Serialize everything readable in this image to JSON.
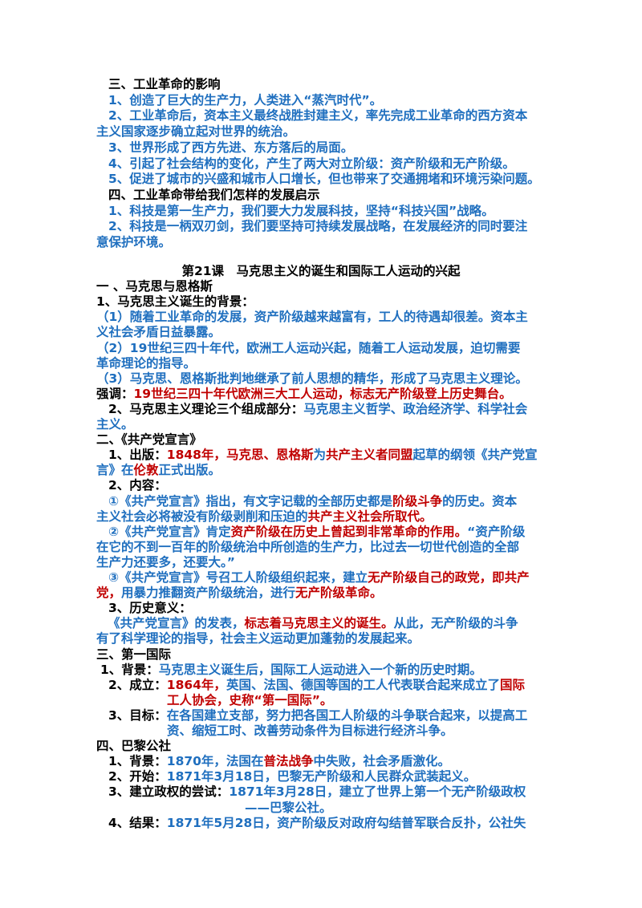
{
  "lines": [
    [
      {
        "text": "三、工业革命的影响",
        "color": "#000000"
      }
    ],
    [
      {
        "text": "1、创造了巨大的生产力，人类进入“蒸汽时代”。",
        "color": "#1f6fbf"
      }
    ],
    [
      {
        "text": "2、工业革命后，资本主义最终战胜封建主义，率先完成工业革命的西方资本",
        "color": "#1f6fbf"
      }
    ],
    [
      {
        "text": "主义国家逐步确立起对世界的统治。",
        "color": "#1f6fbf"
      }
    ],
    [
      {
        "text": "3、世界形成了西方先进、东方落后的局面。",
        "color": "#1f6fbf"
      }
    ],
    [
      {
        "text": "4、引起了社会结构的变化，产生了两大对立阶级：资产阶级和无产阶级。",
        "color": "#1f6fbf"
      }
    ],
    [
      {
        "text": "5、促进了城市的兴盛和城市人口增长，但也带来了交通拥堵和环境污染问题。",
        "color": "#1f6fbf"
      }
    ],
    [
      {
        "text": "四、工业革命带给我们怎样的发展启示",
        "color": "#000000"
      }
    ],
    [
      {
        "text": "1、科技是第一生产力，我们要大力发展科技，坚持“科技兴国”战略。",
        "color": "#1f6fbf"
      }
    ],
    [
      {
        "text": "2、科技是一柄双刃剑，我们要坚持可持续发展战略，在发展经济的同时要注",
        "color": "#1f6fbf"
      }
    ],
    [
      {
        "text": "意保护环境。",
        "color": "#1f6fbf"
      }
    ],
    [
      {
        "text": "第21课　马克思主义的诞生和国际工人运动的兴起",
        "color": "#000000"
      }
    ],
    [
      {
        "text": "一 、马克思与恩格斯",
        "color": "#000000"
      }
    ],
    [
      {
        "text": "1、马克思主义诞生的背景：",
        "color": "#000000"
      }
    ],
    [
      {
        "text": "（1）随着工业革命的发展，资产阶级越来越富有，工人的待遇却很差。资本主",
        "color": "#1f6fbf"
      }
    ],
    [
      {
        "text": "义社会矛盾日益暴露。",
        "color": "#1f6fbf"
      }
    ],
    [
      {
        "text": "（2）19世纪三四十年代，欧洲工人运动兴起，随着工人运动发展，迫切需要",
        "color": "#1f6fbf"
      }
    ],
    [
      {
        "text": "革命理论的指导。",
        "color": "#1f6fbf"
      }
    ],
    [
      {
        "text": "（3）马克思、恩格斯批判地继承了前人思想的精华，形成了马克思主义理论。",
        "color": "#1f6fbf"
      }
    ],
    [
      {
        "text": "强调：",
        "color": "#000000"
      },
      {
        "text": "19世纪三四十年代欧洲三大工人运动，标志无产阶级登上历史舞台。",
        "color": "#c00000"
      }
    ],
    [
      {
        "text": "2、马克思主义理论三个组成部分：",
        "color": "#000000"
      },
      {
        "text": "马克思主义哲学、政治经济学、科学社会",
        "color": "#1f6fbf"
      }
    ],
    [
      {
        "text": "主义。",
        "color": "#1f6fbf"
      }
    ],
    [
      {
        "text": "二、《共产党宣言》",
        "color": "#000000"
      }
    ],
    [
      {
        "text": "1、出版：",
        "color": "#000000"
      },
      {
        "text": "1848年，",
        "color": "#c00000"
      },
      {
        "text": "马克思、恩格斯",
        "color": "#c00000"
      },
      {
        "text": "为",
        "color": "#1f6fbf"
      },
      {
        "text": "共产主义者同盟",
        "color": "#c00000"
      },
      {
        "text": "起草的纲领《共产党宣",
        "color": "#1f6fbf"
      }
    ],
    [
      {
        "text": "言》在",
        "color": "#1f6fbf"
      },
      {
        "text": "伦敦",
        "color": "#c00000"
      },
      {
        "text": "正式出版。",
        "color": "#1f6fbf"
      }
    ],
    [
      {
        "text": "2、内容：",
        "color": "#000000"
      }
    ],
    [
      {
        "text": "①《共产党宣言》指出，有文字记载的全部历史都是",
        "color": "#1f6fbf"
      },
      {
        "text": "阶级斗争",
        "color": "#c00000"
      },
      {
        "text": "的历史。资本",
        "color": "#1f6fbf"
      }
    ],
    [
      {
        "text": "主义社会必将被没有阶级剥削和压迫的",
        "color": "#1f6fbf"
      },
      {
        "text": "共产主义社会所取代。",
        "color": "#c00000"
      }
    ],
    [
      {
        "text": "②《共产党宣言》肯定",
        "color": "#1f6fbf"
      },
      {
        "text": "资产阶级在历史上曾起到非常革命的作用。",
        "color": "#c00000"
      },
      {
        "text": "“资产阶级",
        "color": "#1f6fbf"
      }
    ],
    [
      {
        "text": "在它的不到一百年的阶级统治中所创造的生产力，比过去一切世代创造的全部",
        "color": "#1f6fbf"
      }
    ],
    [
      {
        "text": "生产力还要多，还要大。”",
        "color": "#1f6fbf"
      }
    ],
    [
      {
        "text": "③《共产党宣言》号召工人阶级组织起来，建立",
        "color": "#1f6fbf"
      },
      {
        "text": "无产阶级自己的政党，即共产",
        "color": "#c00000"
      }
    ],
    [
      {
        "text": "党，",
        "color": "#c00000"
      },
      {
        "text": "用暴力推翻资产阶级统治，进行",
        "color": "#1f6fbf"
      },
      {
        "text": "无产阶级革命。",
        "color": "#c00000"
      }
    ],
    [
      {
        "text": "3、历史意义：",
        "color": "#000000"
      }
    ],
    [
      {
        "text": "《共产党宣言》的发表，",
        "color": "#1f6fbf"
      },
      {
        "text": "标志着马克思主义的诞生。",
        "color": "#c00000"
      },
      {
        "text": "从此，无产阶级的斗争",
        "color": "#1f6fbf"
      }
    ],
    [
      {
        "text": "有了科学理论的指导，社会主义运动更加蓬勃的发展起来。",
        "color": "#1f6fbf"
      }
    ],
    [
      {
        "text": "三、第一国际",
        "color": "#000000"
      }
    ],
    [
      {
        "text": "1、背景：",
        "color": "#000000"
      },
      {
        "text": "马克思主义诞生后，国际工人运动进入一个新的历史时期。",
        "color": "#1f6fbf"
      }
    ],
    [
      {
        "text": "2、成立：",
        "color": "#000000"
      },
      {
        "text": "1864年，",
        "color": "#c00000"
      },
      {
        "text": "英国、法国、德国等国的工人代表联合起来成立了",
        "color": "#1f6fbf"
      },
      {
        "text": "国际",
        "color": "#c00000"
      }
    ],
    [
      {
        "text": "工人协会，史称“第一国际”。",
        "color": "#c00000"
      }
    ],
    [
      {
        "text": "3、目标：",
        "color": "#000000"
      },
      {
        "text": "在各国建立支部，努力把各国工人阶级的斗争联合起来，以提高工",
        "color": "#1f6fbf"
      }
    ],
    [
      {
        "text": "资、缩短工时、改善劳动条件为目标进行经济斗争。",
        "color": "#1f6fbf"
      }
    ],
    [
      {
        "text": "四、巴黎公社",
        "color": "#000000"
      }
    ],
    [
      {
        "text": "1、背景：",
        "color": "#000000"
      },
      {
        "text": "1870年，法国在",
        "color": "#1f6fbf"
      },
      {
        "text": "普法战争",
        "color": "#c00000"
      },
      {
        "text": "中失败，社会矛盾激化。",
        "color": "#1f6fbf"
      }
    ],
    [
      {
        "text": "2、开始：",
        "color": "#000000"
      },
      {
        "text": "1871年3月18日，巴黎无产阶级和人民群众武装起义。",
        "color": "#1f6fbf"
      }
    ],
    [
      {
        "text": "3、建立政权的尝试：",
        "color": "#000000"
      },
      {
        "text": "1871年3月28日，建立了世界上第一个无产阶级政权",
        "color": "#1f6fbf"
      }
    ],
    [
      {
        "text": "——巴黎公社。",
        "color": "#1f6fbf"
      }
    ],
    [
      {
        "text": "4、结果：",
        "color": "#000000"
      },
      {
        "text": "1871年5月28日，资产阶级反对政府勾结普军联合反扑，公社失",
        "color": "#1f6fbf"
      }
    ]
  ]
}
